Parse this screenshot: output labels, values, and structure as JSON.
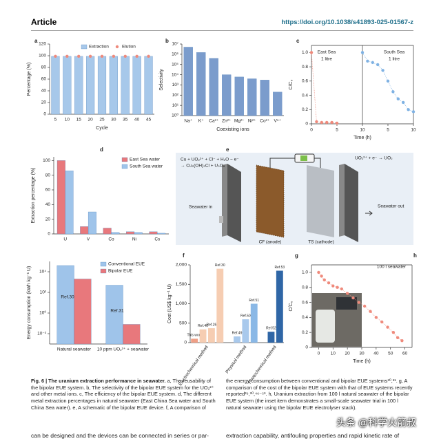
{
  "header": {
    "section": "Article",
    "doi": "https://doi.org/10.1038/s41893-025-01567-z"
  },
  "chart_data": [
    {
      "type": "bar",
      "panel": "a",
      "xlabel": "Cycle",
      "ylabel": "Percentage (%)",
      "categories": [
        "5",
        "10",
        "15",
        "20",
        "25",
        "30",
        "35",
        "40",
        "45"
      ],
      "series": [
        {
          "name": "Extraction",
          "style": "bar",
          "color": "#a7c8ea",
          "values": [
            99,
            99,
            99,
            99,
            99,
            99,
            99,
            99,
            99
          ]
        },
        {
          "name": "Elution",
          "style": "point",
          "color": "#ef8a7c",
          "values": [
            99,
            99,
            99,
            99,
            99,
            99,
            99,
            99,
            99
          ]
        }
      ],
      "ylim": [
        0,
        120
      ],
      "yticks": [
        0,
        20,
        40,
        60,
        80,
        100,
        120
      ],
      "legend": "upper center"
    },
    {
      "type": "bar",
      "panel": "b",
      "xlabel": "Coexisting ions",
      "ylabel": "Selectivity",
      "ylog": true,
      "categories": [
        "Na⁺",
        "K⁺",
        "Ca²⁺",
        "Zn²⁺",
        "Mg²⁺",
        "Ni²⁺",
        "Co²⁺",
        "V⁵⁺"
      ],
      "series": [
        {
          "style": "bar",
          "color": "#7b9ccc",
          "values": [
            5000000,
            1500000,
            400000,
            10000,
            6000,
            4000,
            3000,
            200
          ]
        }
      ],
      "ylim": [
        1,
        10000000
      ],
      "yticks": [
        {
          "value": 1,
          "label": "10⁰"
        },
        {
          "value": 10,
          "label": "10¹"
        },
        {
          "value": 100,
          "label": "10²"
        },
        {
          "value": 1000,
          "label": "10³"
        },
        {
          "value": 10000,
          "label": "10⁴"
        },
        {
          "value": 100000,
          "label": "10⁵"
        },
        {
          "value": 1000000,
          "label": "10⁶"
        },
        {
          "value": 10000000,
          "label": "10⁷"
        }
      ]
    },
    {
      "type": "scatter",
      "panel": "c",
      "xlabel": "Time (h)",
      "ylabel": "C/C₀",
      "break_at": 10,
      "series": [
        {
          "style": "point-line",
          "color": "#ef8a7c",
          "x": [
            0,
            1,
            2,
            3,
            4,
            5
          ],
          "values": [
            1.0,
            0.03,
            0.02,
            0.02,
            0.02,
            0.01
          ]
        },
        {
          "style": "point-line",
          "color": "#7fb2e3",
          "x": [
            10,
            11,
            12,
            13,
            14,
            15,
            16,
            17,
            18,
            19,
            20
          ],
          "values": [
            1.0,
            0.88,
            0.86,
            0.83,
            0.75,
            0.6,
            0.45,
            0.35,
            0.3,
            0.2,
            0.17
          ]
        }
      ],
      "xlim": [
        0,
        20
      ],
      "xticks": [
        0,
        5,
        10,
        {
          "value": 15,
          "label": "5"
        },
        {
          "value": 20,
          "label": "10"
        }
      ],
      "ylim": [
        0,
        1.1
      ],
      "yticks": [
        0,
        0.2,
        0.4,
        0.6,
        0.8,
        {
          "value": 1.0,
          "label": "1.0"
        }
      ],
      "annotations": [
        "East Sea",
        "1 litre",
        "South Sea",
        "1 litre"
      ]
    },
    {
      "type": "bar",
      "panel": "d",
      "ylabel": "Extraction percentage (%)",
      "categories": [
        "U",
        "V",
        "Co",
        "Ni",
        "Cs"
      ],
      "series": [
        {
          "name": "East Sea water",
          "style": "bar",
          "color": "#e8787c",
          "values": [
            100,
            10,
            8,
            3,
            3
          ]
        },
        {
          "name": "South Sea water",
          "style": "bar",
          "color": "#9fc4ea",
          "values": [
            86,
            30,
            2,
            2,
            1
          ]
        }
      ],
      "ylim": [
        0,
        105
      ],
      "yticks": [
        0,
        20,
        40,
        60,
        80,
        100
      ],
      "legend": "upper right"
    },
    {
      "type": "bar",
      "ylabel": "Energy consumption (kWh kg⁻¹ U)",
      "ylog": true,
      "categories": [
        "Natural seawater",
        "10 ppm UO₂²⁺ + seawater"
      ],
      "series": [
        {
          "name": "Conventional EUE",
          "style": "bar",
          "color": "#9fc4ea",
          "values": [
            40000,
            500
          ]
        },
        {
          "name": "Bipolar EUE",
          "style": "bar",
          "color": "#e8787c",
          "values": [
            2000,
            0.08
          ]
        }
      ],
      "ylim": [
        0.001,
        100000
      ],
      "yticks": [
        {
          "value": 0.01,
          "label": "10⁻²"
        },
        {
          "value": 1,
          "label": "10⁰"
        },
        {
          "value": 100,
          "label": "10²"
        },
        {
          "value": 10000,
          "label": "10⁴"
        }
      ],
      "legend": "upper right",
      "annotations": [
        "Ref.30",
        "Ref.31"
      ]
    },
    {
      "type": "grouped-bar",
      "panel": "f",
      "ylabel": "Cost (US$ kg⁻¹ U)",
      "groups": [
        {
          "name": "Electrochemical method",
          "categories": [
            "This work",
            "Ref.46",
            "Ref.26",
            "Ref.30"
          ],
          "values": [
            100,
            340,
            370,
            1900
          ],
          "colors": [
            "#ef9f86",
            "#f6cdb2",
            "#f6cdb2",
            "#f6cdb2"
          ]
        },
        {
          "name": "Physical method",
          "categories": [
            "Ref.49",
            "Ref.50",
            "Ref.51"
          ],
          "values": [
            160,
            600,
            1000
          ],
          "colors": [
            "#a9c9ec",
            "#a9c9ec",
            "#8ab8e6"
          ]
        },
        {
          "name": "Photochemical method",
          "categories": [
            "Ref.52",
            "Ref.53"
          ],
          "values": [
            280,
            1850
          ],
          "colors": [
            "#2f66a6",
            "#2f66a6"
          ]
        }
      ],
      "ylim": [
        0,
        2000
      ],
      "yticks": [
        0,
        500,
        {
          "value": 1000,
          "label": "1,000"
        },
        {
          "value": 1500,
          "label": "1,500"
        },
        {
          "value": 2000,
          "label": "2,000"
        }
      ]
    },
    {
      "type": "scatter",
      "panel": "g",
      "xlabel": "Time (h)",
      "ylabel": "C/C₀",
      "series": [
        {
          "style": "point-line",
          "color": "#ef8a7c",
          "x": [
            0,
            2,
            4,
            7,
            10,
            13,
            16,
            20,
            24,
            28,
            32,
            36,
            40,
            44,
            48,
            52,
            55,
            58
          ],
          "values": [
            1.0,
            0.95,
            0.9,
            0.86,
            0.82,
            0.8,
            0.78,
            0.72,
            0.66,
            0.6,
            0.55,
            0.48,
            0.4,
            0.34,
            0.27,
            0.2,
            0.13,
            0.09
          ]
        }
      ],
      "xlim": [
        -5,
        65
      ],
      "xticks": [
        0,
        10,
        20,
        30,
        40,
        50,
        60
      ],
      "ylim": [
        0,
        1.1
      ],
      "yticks": [
        0,
        0.2,
        0.4,
        0.6,
        0.8,
        {
          "value": 1.0,
          "label": "1.0"
        }
      ],
      "annotations": [
        "100 l seawater"
      ]
    }
  ],
  "extra_panel": "h",
  "diagram": {
    "panel": "e",
    "anode_reaction": [
      "Cu + UO₂²⁺ + Cl⁻ + H₂O − e⁻",
      "→ Cu₂(OH)₃Cl + U₃O₈"
    ],
    "cathode_reaction": "UO₂²⁺ + e⁻ → UO₂",
    "inlet": "Seawater in",
    "outlet": "Seawater out",
    "anode": "CF (anode)",
    "cathode": "TS (cathode)"
  },
  "caption": {
    "title": "Fig. 6 | The uranium extraction performance in seawater.",
    "left": "a, The reusability of the bipolar EUE system. b, The selectivity of the bipolar EUE system for the UO₂²⁺ and other metal ions. c, The efficiency of the bipolar EUE system. d, The different metal extraction percentages in natural seawater (East China Sea water and South China Sea water). e, A schematic of the bipolar EUE device. f, A comparison of",
    "right": "the energy consumption between conventional and bipolar EUE systems³⁰,³¹. g, A comparison of the cost of the bipolar EUE system with that of EUE systems recently reported²⁶,³⁰,⁴⁶⁻⁵³. h, Uranium extraction from 100 l natural seawater of the bipolar EUE system (the inset item demonstrates a small-scale seawater trial in 100 l natural seawater using the bipolar EUE electrolyser stack)."
  },
  "body": {
    "left": "can be designed and the devices can be connected in series or par-",
    "right": "extraction capability, antifouling properties and rapid kinetic rate of"
  },
  "watermark": "头条 @科学火箭叔"
}
